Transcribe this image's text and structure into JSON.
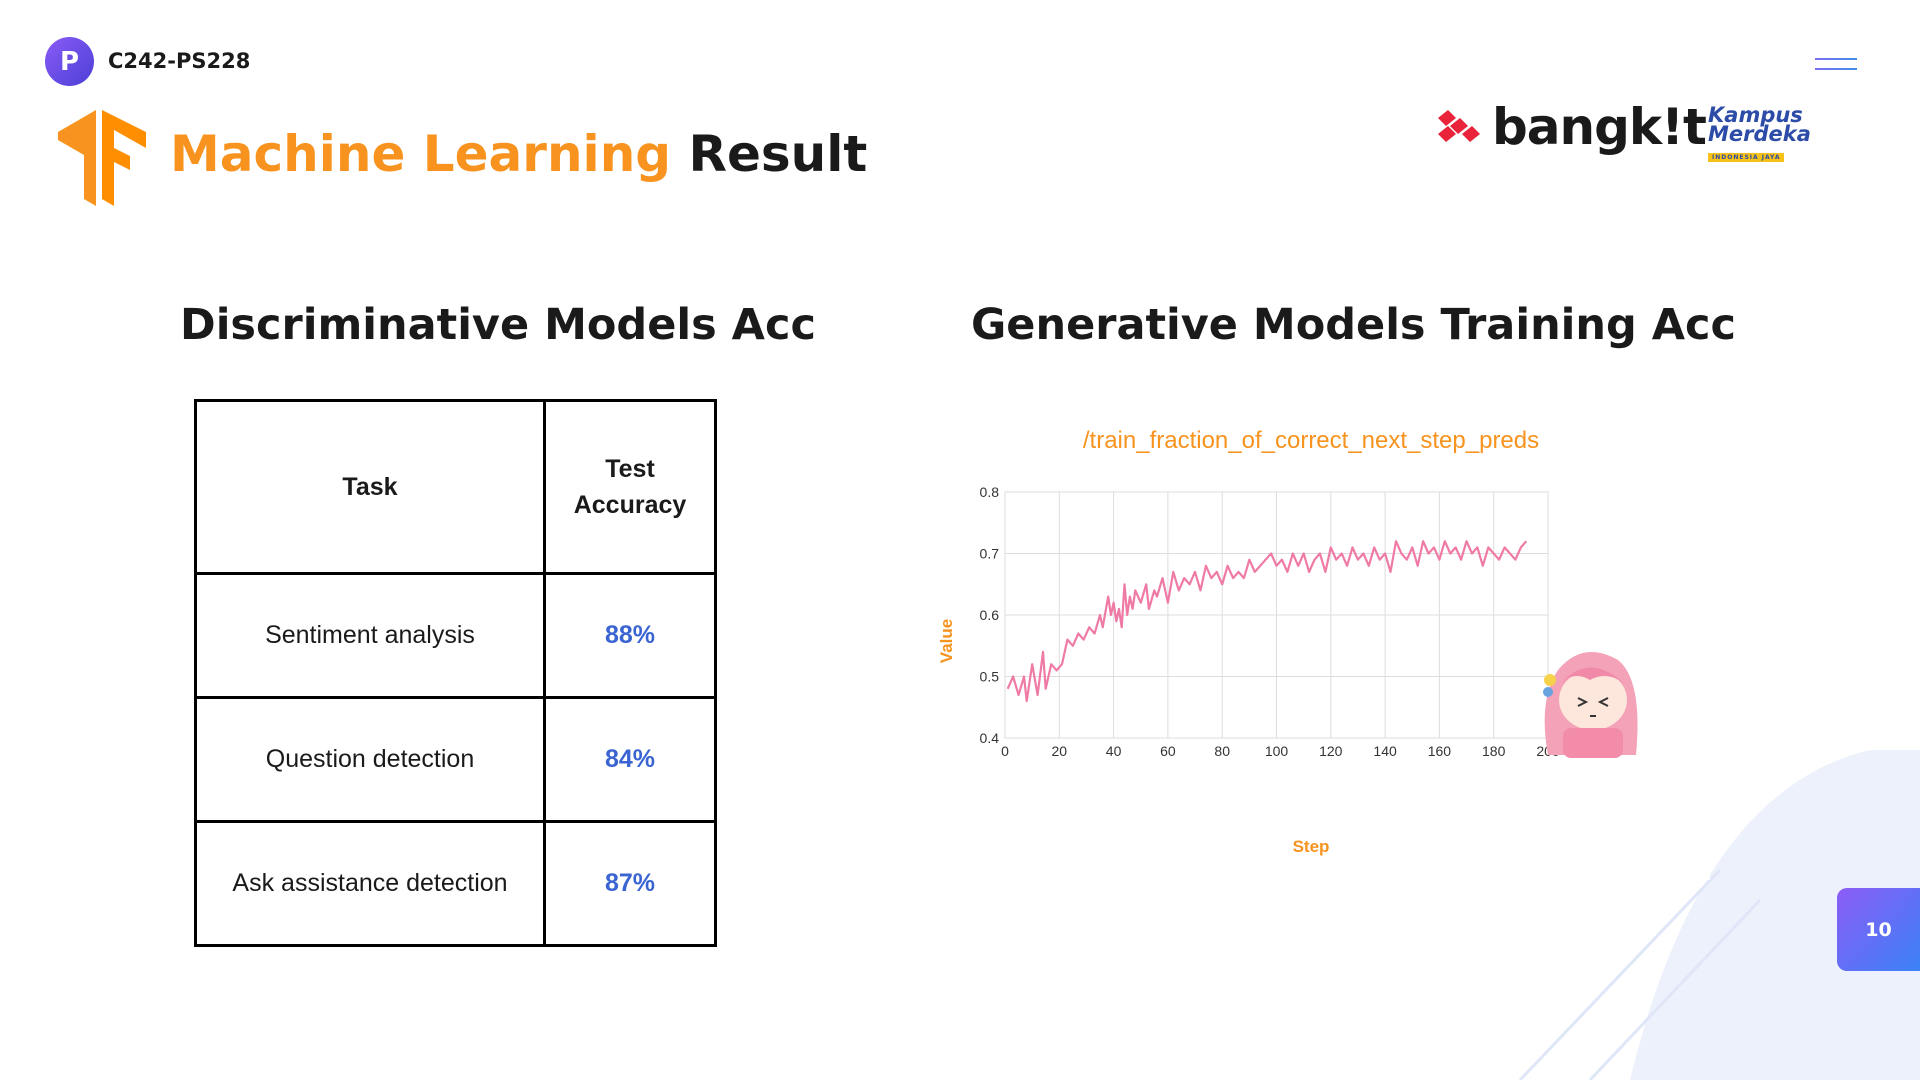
{
  "header": {
    "team_code": "C242-PS228",
    "team_logo_letter": "P",
    "title_highlight": "Machine Learning",
    "title_rest": "Result",
    "bangkit_text": "bangk!t",
    "kampus_line1": "Kampus",
    "kampus_line2": "Merdeka",
    "kampus_line3": "INDONESIA JAYA"
  },
  "left": {
    "title": "Discriminative Models Acc",
    "table": {
      "headers": [
        "Task",
        "Test Accuracy"
      ],
      "rows": [
        [
          "Sentiment analysis",
          "88%"
        ],
        [
          "Question detection",
          "84%"
        ],
        [
          "Ask assistance detection",
          "87%"
        ]
      ]
    }
  },
  "right": {
    "title": "Generative Models Training Acc"
  },
  "page_number": "10",
  "colors": {
    "accent": "#f7931e",
    "link_blue": "#3a64d2",
    "line": "#ef7aa6",
    "purple": "#7c5cf0"
  },
  "chart_data": {
    "type": "line",
    "title": "/train_fraction_of_correct_next_step_preds",
    "xlabel": "Step",
    "ylabel": "Value",
    "xlim": [
      0,
      200
    ],
    "ylim": [
      0.4,
      0.8
    ],
    "xticks": [
      0,
      20,
      40,
      60,
      80,
      100,
      120,
      140,
      160,
      180,
      200
    ],
    "yticks": [
      0.4,
      0.5,
      0.6,
      0.7,
      0.8
    ],
    "grid": true,
    "series": [
      {
        "x": [
          1,
          3,
          5,
          7,
          8,
          10,
          12,
          14,
          15,
          17,
          19,
          21,
          23,
          25,
          27,
          29,
          31,
          33,
          35,
          36,
          38,
          39,
          40,
          41,
          42,
          43,
          44,
          45,
          46,
          47,
          48,
          50,
          52,
          53,
          55,
          56,
          58,
          60,
          62,
          64,
          66,
          68,
          70,
          72,
          74,
          76,
          78,
          80,
          82,
          84,
          86,
          88,
          90,
          92,
          94,
          96,
          98,
          100,
          102,
          104,
          106,
          108,
          110,
          112,
          114,
          116,
          118,
          120,
          122,
          124,
          126,
          128,
          130,
          132,
          134,
          136,
          138,
          140,
          142,
          144,
          146,
          148,
          150,
          152,
          154,
          156,
          158,
          160,
          162,
          164,
          166,
          168,
          170,
          172,
          174,
          176,
          178,
          180,
          182,
          184,
          186,
          188,
          190,
          192
        ],
        "y": [
          0.48,
          0.5,
          0.47,
          0.5,
          0.46,
          0.52,
          0.47,
          0.54,
          0.48,
          0.52,
          0.51,
          0.52,
          0.56,
          0.55,
          0.57,
          0.56,
          0.58,
          0.57,
          0.6,
          0.58,
          0.63,
          0.6,
          0.62,
          0.59,
          0.61,
          0.58,
          0.65,
          0.6,
          0.63,
          0.61,
          0.64,
          0.62,
          0.65,
          0.61,
          0.64,
          0.63,
          0.66,
          0.62,
          0.67,
          0.64,
          0.66,
          0.65,
          0.67,
          0.64,
          0.68,
          0.66,
          0.67,
          0.65,
          0.68,
          0.66,
          0.67,
          0.66,
          0.69,
          0.67,
          0.68,
          0.69,
          0.7,
          0.68,
          0.69,
          0.67,
          0.7,
          0.68,
          0.7,
          0.67,
          0.69,
          0.7,
          0.67,
          0.71,
          0.69,
          0.7,
          0.68,
          0.71,
          0.69,
          0.7,
          0.68,
          0.71,
          0.69,
          0.7,
          0.67,
          0.72,
          0.7,
          0.69,
          0.71,
          0.68,
          0.72,
          0.7,
          0.71,
          0.69,
          0.72,
          0.7,
          0.71,
          0.69,
          0.72,
          0.7,
          0.71,
          0.68,
          0.71,
          0.7,
          0.69,
          0.71,
          0.7,
          0.69,
          0.71,
          0.72
        ]
      }
    ]
  }
}
